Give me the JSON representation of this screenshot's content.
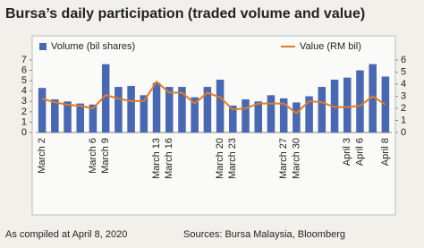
{
  "chart_data": {
    "type": "bar",
    "title": "Bursa’s daily participation (traded volume and value)",
    "note": "As compiled at April 8, 2020",
    "source": "Sources: Bursa Malaysia, Bloomberg",
    "categories": [
      "March 2",
      null,
      null,
      null,
      "March 6",
      "March 9",
      null,
      null,
      null,
      "March 13",
      "March 16",
      null,
      null,
      null,
      "March 20",
      "March 23",
      null,
      null,
      null,
      "March 27",
      "March 30",
      null,
      null,
      null,
      "April 3",
      "April 6",
      null,
      "April 8"
    ],
    "series": [
      {
        "name": "Volume (bil shares)",
        "type": "bar",
        "axis": "y",
        "color": "#4a68b0",
        "values": [
          4.3,
          3.2,
          3.0,
          2.8,
          2.7,
          6.6,
          4.4,
          4.5,
          3.6,
          4.8,
          4.4,
          4.4,
          3.4,
          4.4,
          5.1,
          2.6,
          3.2,
          3.0,
          3.6,
          3.3,
          2.9,
          3.5,
          4.4,
          5.1,
          5.3,
          6.0,
          6.6,
          5.4
        ]
      },
      {
        "name": "Value (RM bil)",
        "type": "line",
        "axis": "y2",
        "color": "#e07b27",
        "values": [
          2.8,
          2.5,
          2.3,
          2.2,
          2.0,
          3.1,
          2.8,
          2.6,
          2.6,
          4.2,
          3.3,
          3.3,
          2.4,
          3.3,
          2.9,
          1.9,
          2.0,
          2.4,
          2.4,
          2.4,
          1.6,
          2.6,
          2.5,
          2.1,
          2.1,
          2.2,
          3.0,
          2.3
        ]
      }
    ],
    "ylim": [
      0,
      7
    ],
    "yticks": [
      0,
      1,
      2,
      3,
      4,
      5,
      6,
      7
    ],
    "y2lim": [
      0,
      6
    ],
    "y2ticks": [
      0,
      1,
      2,
      3,
      4,
      5,
      6
    ],
    "legend": "top",
    "grid": false
  }
}
